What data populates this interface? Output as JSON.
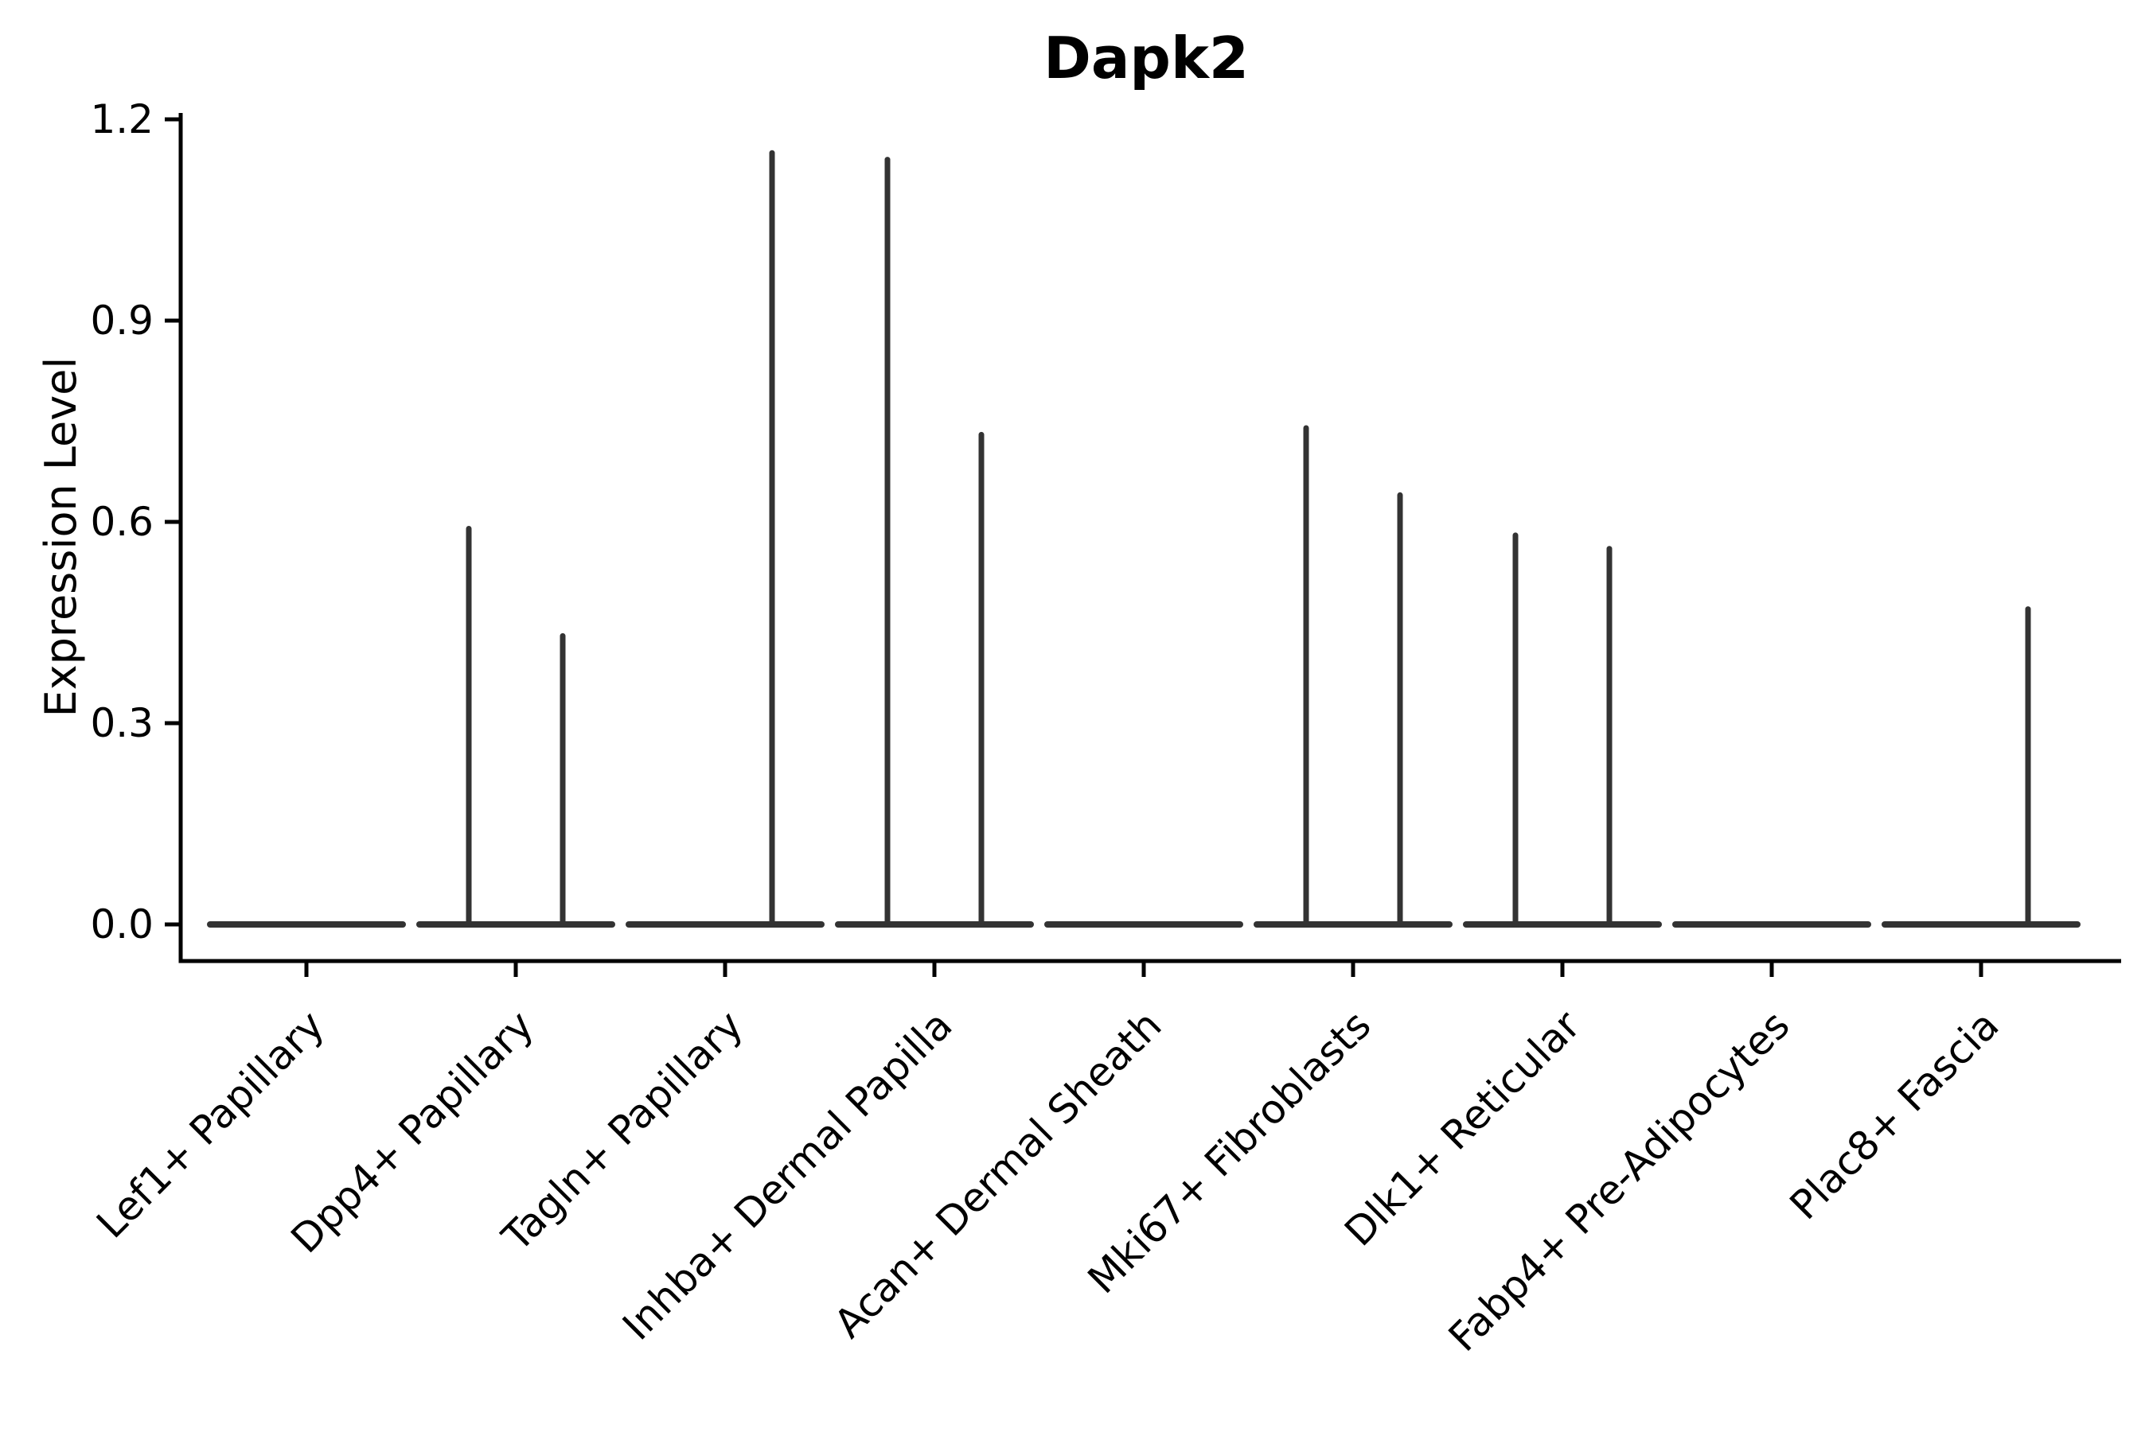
{
  "figure": {
    "title": "Dapk2",
    "y_axis_label": "Expression Level"
  },
  "chart_data": {
    "type": "violin",
    "title": "Dapk2",
    "xlabel": "",
    "ylabel": "Expression Level",
    "grid": false,
    "legend_position": "none",
    "background_color": "#ffffff",
    "axis_color": "#000000",
    "violin_color": "#333333",
    "ylim": [
      -0.055,
      1.21
    ],
    "yticks": [
      {
        "value": 0.0,
        "label": "0.0"
      },
      {
        "value": 0.3,
        "label": "0.3"
      },
      {
        "value": 0.6,
        "label": "0.6"
      },
      {
        "value": 0.9,
        "label": "0.9"
      },
      {
        "value": 1.2,
        "label": "1.2"
      }
    ],
    "categories": [
      "Lef1+ Papillary",
      "Dpp4+ Papillary",
      "Tagln+ Papillary",
      "Inhba+ Dermal Papilla",
      "Acan+ Dermal Sheath",
      "Mki67+ Fibroblasts",
      "Dlk1+ Reticular",
      "Fabp4+ Pre-Adipocytes",
      "Plac8+ Fascia"
    ],
    "violins": [
      {
        "category": "Lef1+ Papillary",
        "base_value": 0.0,
        "spike_left": null,
        "spike_right": null
      },
      {
        "category": "Dpp4+ Papillary",
        "base_value": 0.0,
        "spike_left": 0.59,
        "spike_right": 0.43
      },
      {
        "category": "Tagln+ Papillary",
        "base_value": 0.0,
        "spike_left": null,
        "spike_right": 1.15
      },
      {
        "category": "Inhba+ Dermal Papilla",
        "base_value": 0.0,
        "spike_left": 1.14,
        "spike_right": 0.73
      },
      {
        "category": "Acan+ Dermal Sheath",
        "base_value": 0.0,
        "spike_left": null,
        "spike_right": null
      },
      {
        "category": "Mki67+ Fibroblasts",
        "base_value": 0.0,
        "spike_left": 0.74,
        "spike_right": 0.64
      },
      {
        "category": "Dlk1+ Reticular",
        "base_value": 0.0,
        "spike_left": 0.58,
        "spike_right": 0.56
      },
      {
        "category": "Fabp4+ Pre-Adipocytes",
        "base_value": 0.0,
        "spike_left": null,
        "spike_right": null
      },
      {
        "category": "Plac8+ Fascia",
        "base_value": 0.0,
        "spike_left": null,
        "spike_right": 0.47
      }
    ]
  }
}
